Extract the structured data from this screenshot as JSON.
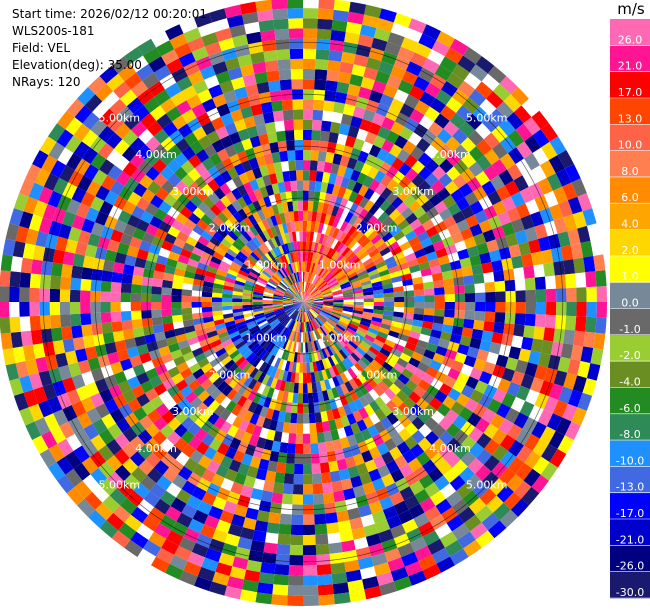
{
  "header": {
    "start_time": "Start time: 2026/02/12 00:20:01",
    "instrument": "WLS200s-181",
    "field": "Field: VEL",
    "elevation": "Elevation(deg): 35.00",
    "nrays": "NRays: 120"
  },
  "chart_data": {
    "type": "polar-ppi",
    "field": "VEL",
    "units": "m/s",
    "n_rays": 120,
    "elevation_deg": 35.0,
    "range_rings_km": [
      1.0,
      2.0,
      3.0,
      4.0,
      5.0
    ],
    "range_max_km": 5.85,
    "ring_labels": [
      {
        "text": "1.00km",
        "km": 1.0
      },
      {
        "text": "2.00km",
        "km": 2.0
      },
      {
        "text": "3.00km",
        "km": 3.0
      },
      {
        "text": "4.00km",
        "km": 4.0
      },
      {
        "text": "5.00km",
        "km": 5.0
      }
    ],
    "colorbar": {
      "title": "m/s",
      "colors": [
        "#191970",
        "#000080",
        "#0000cd",
        "#0000ff",
        "#4169e1",
        "#1e90ff",
        "#2e8b57",
        "#228b22",
        "#6b8e23",
        "#9acd32",
        "#696969",
        "#778899",
        "#ffff00",
        "#ffd700",
        "#ffa500",
        "#ff8c00",
        "#ff7f50",
        "#ff6347",
        "#ff4500",
        "#ff0000",
        "#ff1493",
        "#ff69b4"
      ],
      "tick_labels": [
        "-30.0",
        "-26.0",
        "-21.0",
        "-17.0",
        "-13.0",
        "-10.0",
        "-8.0",
        "-6.0",
        "-4.0",
        "-2.0",
        "-1.0",
        "0.0",
        "1.0",
        "2.0",
        "4.0",
        "6.0",
        "8.0",
        "10.0",
        "13.0",
        "17.0",
        "21.0",
        "26.0"
      ]
    }
  }
}
